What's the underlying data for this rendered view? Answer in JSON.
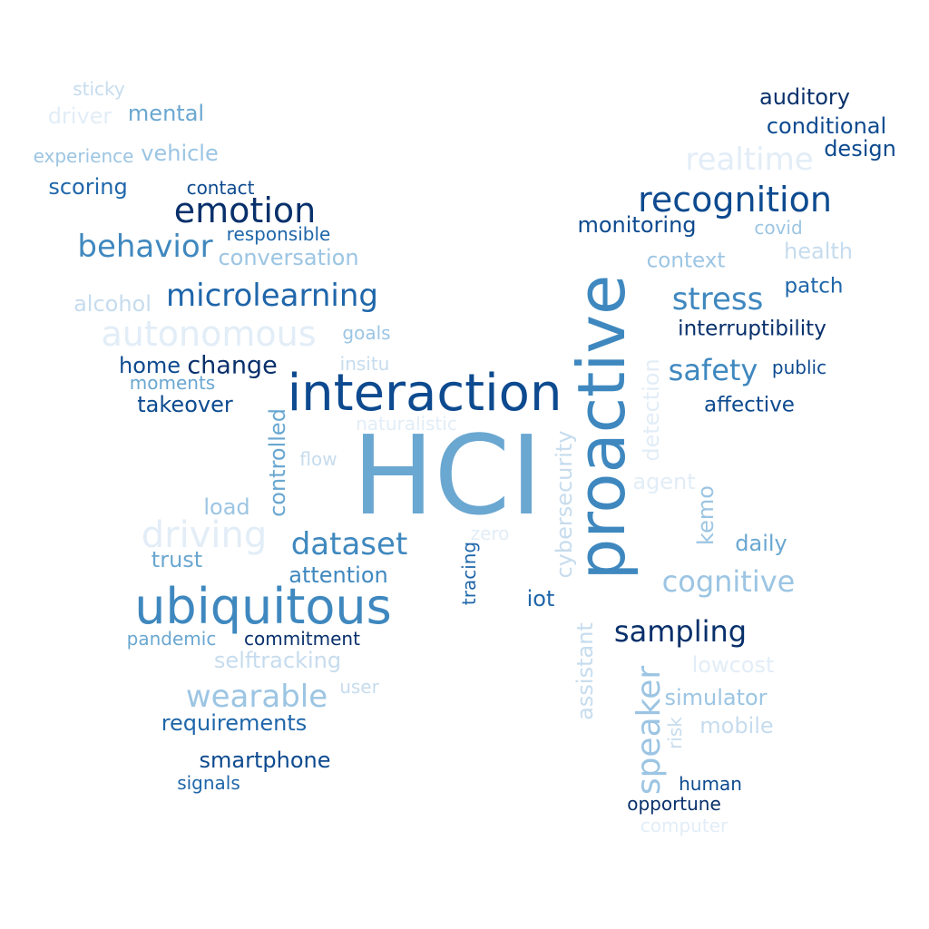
{
  "words": {
    "hci": "HCI",
    "proactive": "proactive",
    "interaction": "interaction",
    "ubiquitous": "ubiquitous",
    "recognition": "recognition",
    "emotion": "emotion",
    "autonomous": "autonomous",
    "behavior": "behavior",
    "stress": "stress",
    "realtime": "realtime",
    "driving": "driving",
    "microlearning": "microlearning",
    "dataset": "dataset",
    "cognitive": "cognitive",
    "sampling": "sampling",
    "wearable": "wearable",
    "safety": "safety",
    "speaker": "speaker",
    "change": "change",
    "monitoring": "monitoring",
    "context": "context",
    "patch": "patch",
    "interruptibility": "interruptibility",
    "affective": "affective",
    "auditory": "auditory",
    "conditional": "conditional",
    "design": "design",
    "health": "health",
    "covid": "covid",
    "public": "public",
    "mental": "mental",
    "driver": "driver",
    "sticky": "sticky",
    "experience": "experience",
    "vehicle": "vehicle",
    "scoring": "scoring",
    "contact": "contact",
    "responsible": "responsible",
    "conversation": "conversation",
    "alcohol": "alcohol",
    "goals": "goals",
    "home": "home",
    "insitu": "insitu",
    "moments": "moments",
    "takeover": "takeover",
    "naturalistic": "naturalistic",
    "controlled": "controlled",
    "flow": "flow",
    "load": "load",
    "zero": "zero",
    "trust": "trust",
    "attention": "attention",
    "tracing": "tracing",
    "cybersecurity": "cybersecurity",
    "iot": "iot",
    "detection": "detection",
    "agent": "agent",
    "kemo": "kemo",
    "daily": "daily",
    "pandemic": "pandemic",
    "commitment": "commitment",
    "selftracking": "selftracking",
    "assistant": "assistant",
    "lowcost": "lowcost",
    "user": "user",
    "simulator": "simulator",
    "requirements": "requirements",
    "risk": "risk",
    "mobile": "mobile",
    "smartphone": "smartphone",
    "signals": "signals",
    "human": "human",
    "opportune": "opportune",
    "computer": "computer"
  },
  "palette": {
    "darkest": "#08306b",
    "dark": "#0d4a8f",
    "mid_dark": "#1f66aa",
    "mid": "#3f88bf",
    "mid_light": "#6aa7d1",
    "light": "#9cc5e3",
    "lighter": "#c6dcee",
    "lightest": "#e2edf7"
  }
}
